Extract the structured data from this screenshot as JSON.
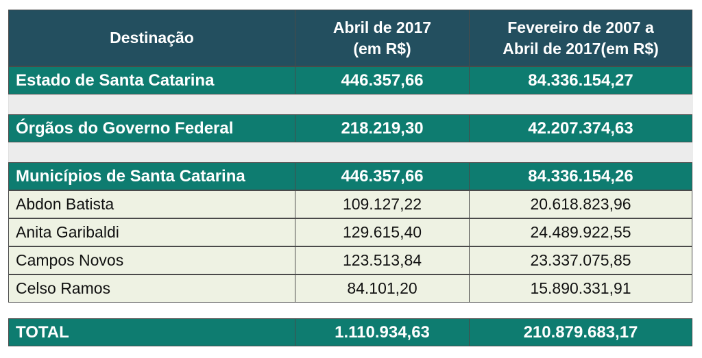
{
  "header": {
    "col1": "Destinação",
    "col2_line1": "Abril de 2017",
    "col2_line2": "(em R$)",
    "col3_line1": "Fevereiro de 2007 a",
    "col3_line2": "Abril de 2017(em R$)"
  },
  "estado": {
    "label": "Estado de Santa Catarina",
    "abril": "446.357,66",
    "periodo": "84.336.154,27"
  },
  "orgaos": {
    "label": "Órgãos do Governo Federal",
    "abril": "218.219,30",
    "periodo": "42.207.374,63"
  },
  "municipios": {
    "label": "Municípios de Santa Catarina",
    "abril": "446.357,66",
    "periodo": "84.336.154,26",
    "rows": [
      {
        "label": "Abdon Batista",
        "abril": "109.127,22",
        "periodo": "20.618.823,96"
      },
      {
        "label": "Anita Garibaldi",
        "abril": "129.615,40",
        "periodo": "24.489.922,55"
      },
      {
        "label": "Campos Novos",
        "abril": "123.513,84",
        "periodo": "23.337.075,85"
      },
      {
        "label": "Celso Ramos",
        "abril": "84.101,20",
        "periodo": "15.890.331,91"
      }
    ]
  },
  "total": {
    "label": "TOTAL",
    "abril": "1.110.934,63",
    "periodo": "210.879.683,17"
  },
  "colors": {
    "header_bg": "#234f5f",
    "teal_row_bg": "#0e7c70",
    "light_row_bg": "#eef2e3",
    "gap_bg": "#ececec"
  }
}
